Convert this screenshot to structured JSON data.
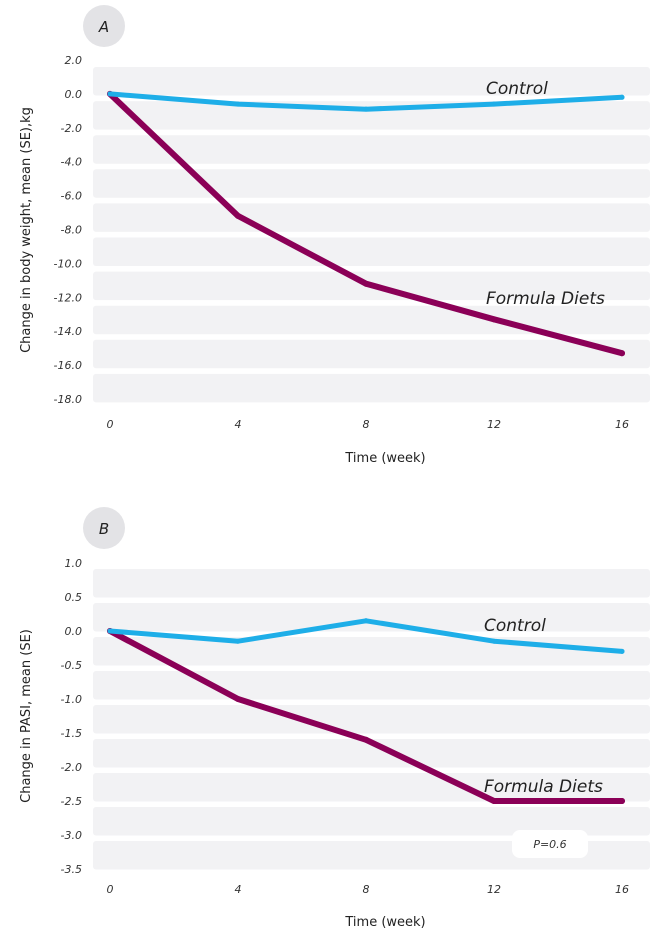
{
  "chart_data": [
    {
      "type": "line",
      "panel_label": "A",
      "xlabel": "Time (week)",
      "ylabel": "Change in body weight, mean (SE),kg",
      "x": [
        0,
        4,
        8,
        12,
        16
      ],
      "x_tick_labels": [
        "0",
        "4",
        "8",
        "12",
        "16"
      ],
      "y_tick_labels": [
        "2.0",
        "0.0",
        "-2.0",
        "-4.0",
        "-6.0",
        "-8.0",
        "-10.0",
        "-12.0",
        "-14.0",
        "-16.0",
        "-18.0"
      ],
      "ylim": [
        -18,
        2
      ],
      "series": [
        {
          "name": "Control",
          "color": "#1eaee8",
          "values": [
            0.0,
            -0.6,
            -0.9,
            -0.6,
            -0.2
          ]
        },
        {
          "name": "Formula Diets",
          "color": "#8b0057",
          "values": [
            0.0,
            -7.2,
            -11.2,
            -13.3,
            -15.3
          ]
        }
      ],
      "annotations": []
    },
    {
      "type": "line",
      "panel_label": "B",
      "xlabel": "Time (week)",
      "ylabel": "Change in PASI, mean (SE)",
      "x": [
        0,
        4,
        8,
        12,
        16
      ],
      "x_tick_labels": [
        "0",
        "4",
        "8",
        "12",
        "16"
      ],
      "y_tick_labels": [
        "1.0",
        "0.5",
        "0.0",
        "-0.5",
        "-1.0",
        "-1.5",
        "-2.0",
        "-2.5",
        "-3.0",
        "-3.5"
      ],
      "ylim": [
        -3.5,
        1.0
      ],
      "series": [
        {
          "name": "Control",
          "color": "#1eaee8",
          "values": [
            0.0,
            -0.15,
            0.15,
            -0.15,
            -0.3
          ]
        },
        {
          "name": "Formula Diets",
          "color": "#8b0057",
          "values": [
            0.0,
            -1.0,
            -1.6,
            -2.5,
            -2.5
          ]
        }
      ],
      "annotations": [
        "P=0.6"
      ]
    }
  ]
}
